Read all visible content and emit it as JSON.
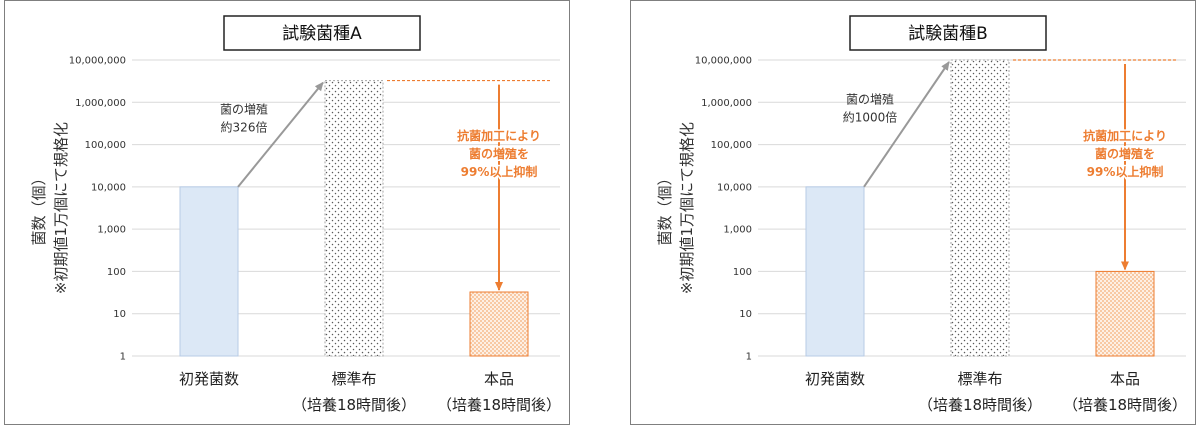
{
  "chart_data": [
    {
      "type": "bar",
      "title": "試験菌種A",
      "ylabel": [
        "菌数（個）",
        "※初期値1万個にて規格化"
      ],
      "yscale": "log",
      "ylim": [
        1,
        10000000
      ],
      "yticks": [
        "1",
        "10",
        "100",
        "1,000",
        "10,000",
        "100,000",
        "1,000,000",
        "10,000,000"
      ],
      "categories": [
        [
          "初発菌数",
          ""
        ],
        [
          "標準布",
          "（培養18時間後）"
        ],
        [
          "本品",
          "（培養18時間後）"
        ]
      ],
      "values": [
        10000,
        3260000,
        32.6
      ],
      "fill_styles": [
        "solid-light-blue",
        "dots-grey",
        "checker-orange"
      ],
      "grid": true,
      "annotations": [
        {
          "kind": "arrow-up",
          "from_bar": 0,
          "to_bar": 1,
          "color": "#999999",
          "text": [
            "菌の増殖",
            "約326倍"
          ]
        },
        {
          "kind": "arrow-down",
          "from_bar": 1,
          "to_bar": 2,
          "color": "#ed7d31",
          "text": [
            "抗菌加工により",
            "菌の増殖を",
            "99%以上抑制"
          ]
        }
      ]
    },
    {
      "type": "bar",
      "title": "試験菌種B",
      "ylabel": [
        "菌数（個）",
        "※初期値1万個にて規格化"
      ],
      "yscale": "log",
      "ylim": [
        1,
        10000000
      ],
      "yticks": [
        "1",
        "10",
        "100",
        "1,000",
        "10,000",
        "100,000",
        "1,000,000",
        "10,000,000"
      ],
      "categories": [
        [
          "初発菌数",
          ""
        ],
        [
          "標準布",
          "（培養18時間後）"
        ],
        [
          "本品",
          "（培養18時間後）"
        ]
      ],
      "values": [
        10000,
        10000000,
        100
      ],
      "fill_styles": [
        "solid-light-blue",
        "dots-grey",
        "checker-orange"
      ],
      "grid": true,
      "annotations": [
        {
          "kind": "arrow-up",
          "from_bar": 0,
          "to_bar": 1,
          "color": "#999999",
          "text": [
            "菌の増殖",
            "約1000倍"
          ]
        },
        {
          "kind": "arrow-down",
          "from_bar": 1,
          "to_bar": 2,
          "color": "#ed7d31",
          "text": [
            "抗菌加工により",
            "菌の増殖を",
            "99%以上抑制"
          ]
        }
      ]
    }
  ],
  "colors": {
    "bar_initial_fill": "#dce8f6",
    "bar_initial_stroke": "#b7cbe6",
    "bar_standard_stroke": "#a6a6a6",
    "bar_standard_dot": "#595959",
    "bar_product_stroke": "#ed7d31",
    "bar_product_fill": "#f8c9a4",
    "growth_arrow": "#999999",
    "reduction_arrow": "#ed7d31",
    "grid": "#d9d9d9",
    "border": "#7f7f7f"
  }
}
